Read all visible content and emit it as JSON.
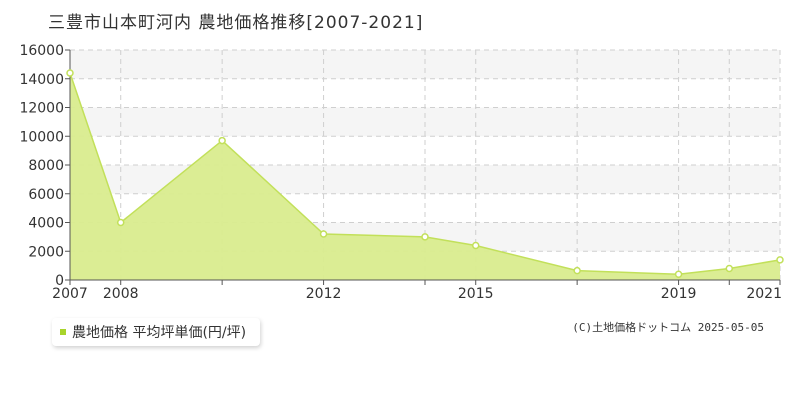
{
  "title": "三豊市山本町河内 農地価格推移[2007-2021]",
  "legend": {
    "label": "農地価格 平均坪単価(円/坪)"
  },
  "copyright": "(C)土地価格ドットコム 2025-05-05",
  "colors": {
    "area_fill": "#d9ec8e",
    "line": "#c2e05a",
    "legend_swatch": "#a8d42b",
    "band": "#f5f5f5",
    "grid": "#cfcfcf"
  },
  "chart_data": {
    "type": "area",
    "x": [
      2007,
      2008,
      2010,
      2012,
      2014,
      2015,
      2017,
      2019,
      2020,
      2021
    ],
    "series": [
      {
        "values": [
          14400,
          4000,
          9700,
          3200,
          3000,
          2400,
          650,
          400,
          800,
          1400
        ]
      }
    ],
    "x_tick_labels": [
      "2007",
      "2008",
      "2012",
      "2015",
      "2019",
      "2021"
    ],
    "x_tick_values": [
      2007,
      2008,
      2012,
      2015,
      2019,
      2021
    ],
    "y_ticks": [
      0,
      2000,
      4000,
      6000,
      8000,
      10000,
      12000,
      14000,
      16000
    ],
    "xlim": [
      2007,
      2021
    ],
    "ylim": [
      0,
      16000
    ],
    "grid": true,
    "legend_position": "bottom-left"
  }
}
